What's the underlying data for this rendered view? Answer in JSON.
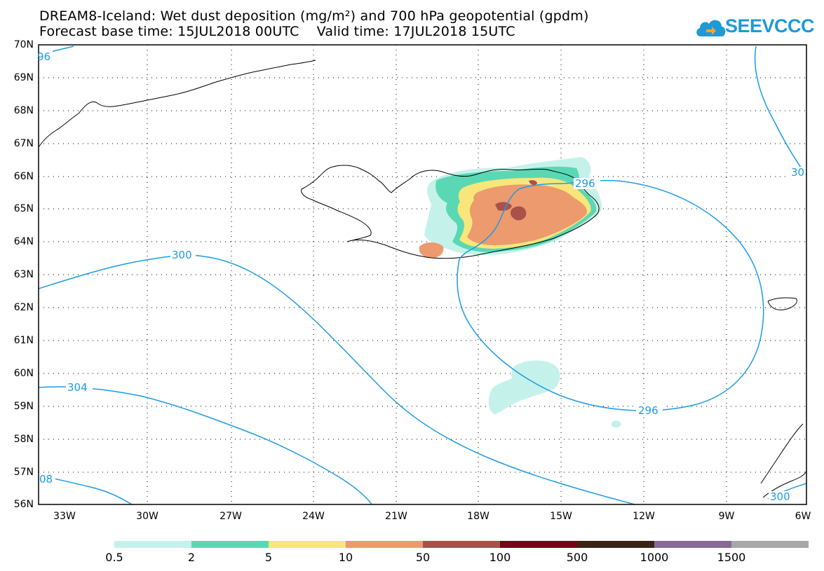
{
  "title": {
    "line1": "DREAM8-Iceland: Wet dust deposition (mg/m²) and 700 hPa geopotential (gpdm)",
    "line2": "Forecast base time: 15JUL2018 00UTC    Valid time: 17JUL2018 15UTC"
  },
  "logo": {
    "text": "SEEVCCC",
    "icon": "cloud-icon"
  },
  "map": {
    "lat_range": [
      56,
      70
    ],
    "lon_range": [
      -35,
      -6
    ],
    "lat_labels": [
      "70N",
      "69N",
      "68N",
      "67N",
      "66N",
      "65N",
      "64N",
      "63N",
      "62N",
      "61N",
      "60N",
      "59N",
      "58N",
      "57N",
      "56N"
    ],
    "lon_labels": [
      "33W",
      "30W",
      "27W",
      "24W",
      "21W",
      "18W",
      "15W",
      "12W",
      "9W",
      "6W"
    ],
    "grid": "dotted",
    "contour_color": "#1e9be6",
    "contour_labels": [
      "96",
      "300",
      "304",
      "08",
      "296",
      "30",
      "296",
      "300"
    ]
  },
  "colorbar": {
    "colors": [
      "#c4f2ea",
      "#5ad8b4",
      "#f8e67a",
      "#ec9a6e",
      "#a8524a",
      "#7a0018",
      "#3a2414",
      "#8a6a98",
      "#a8a8a8"
    ],
    "labels": [
      "0.5",
      "2",
      "5",
      "10",
      "50",
      "100",
      "500",
      "1000",
      "1500"
    ]
  }
}
